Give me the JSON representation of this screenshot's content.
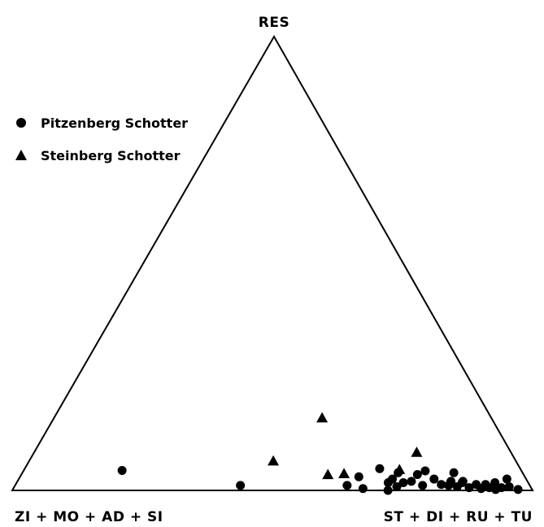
{
  "chart_data": {
    "type": "scatter",
    "subtype": "ternary",
    "apex_labels": {
      "top": "RES",
      "left": "ZI + MO + AD + SI",
      "right": "ST + DI + RU + TU"
    },
    "legend": {
      "placement": "top-left",
      "entries": [
        {
          "name": "Pitzenberg Schotter",
          "marker": "circle"
        },
        {
          "name": "Steinberg Schotter",
          "marker": "triangle"
        }
      ]
    },
    "units": "percent",
    "series": [
      {
        "name": "Pitzenberg Schotter",
        "marker": "circle",
        "points": [
          {
            "res": 4.4,
            "zmas": 76.7,
            "stdirutu": 18.9
          },
          {
            "res": 1.1,
            "zmas": 55.6,
            "stdirutu": 43.3
          },
          {
            "res": 1.1,
            "zmas": 35.1,
            "stdirutu": 63.8
          },
          {
            "res": 3.0,
            "zmas": 31.9,
            "stdirutu": 65.1
          },
          {
            "res": 4.8,
            "zmas": 27.0,
            "stdirutu": 68.2
          },
          {
            "res": 2.5,
            "zmas": 25.7,
            "stdirutu": 71.8
          },
          {
            "res": 0.4,
            "zmas": 32.4,
            "stdirutu": 67.2
          },
          {
            "res": 0.0,
            "zmas": 27.8,
            "stdirutu": 72.2
          },
          {
            "res": 1.7,
            "zmas": 26.9,
            "stdirutu": 71.4
          },
          {
            "res": 0.8,
            "zmas": 25.7,
            "stdirutu": 73.5
          },
          {
            "res": 1.7,
            "zmas": 24.0,
            "stdirutu": 74.3
          },
          {
            "res": 3.9,
            "zmas": 23.9,
            "stdirutu": 72.2
          },
          {
            "res": 2.0,
            "zmas": 22.3,
            "stdirutu": 75.7
          },
          {
            "res": 3.5,
            "zmas": 20.4,
            "stdirutu": 76.1
          },
          {
            "res": 1.1,
            "zmas": 20.6,
            "stdirutu": 78.3
          },
          {
            "res": 4.3,
            "zmas": 18.5,
            "stdirutu": 77.2
          },
          {
            "res": 2.5,
            "zmas": 17.7,
            "stdirutu": 79.8
          },
          {
            "res": 1.3,
            "zmas": 16.9,
            "stdirutu": 81.8
          },
          {
            "res": 2.0,
            "zmas": 14.7,
            "stdirutu": 83.3
          },
          {
            "res": 1.1,
            "zmas": 15.6,
            "stdirutu": 83.3
          },
          {
            "res": 0.8,
            "zmas": 14.1,
            "stdirutu": 85.1
          },
          {
            "res": 3.9,
            "zmas": 13.2,
            "stdirutu": 82.9
          },
          {
            "res": 1.7,
            "zmas": 12.7,
            "stdirutu": 85.6
          },
          {
            "res": 0.6,
            "zmas": 11.9,
            "stdirutu": 87.5
          },
          {
            "res": 1.3,
            "zmas": 10.2,
            "stdirutu": 88.5
          },
          {
            "res": 2.0,
            "zmas": 12.4,
            "stdirutu": 85.6
          },
          {
            "res": 0.4,
            "zmas": 9.7,
            "stdirutu": 89.9
          },
          {
            "res": 0.6,
            "zmas": 8.0,
            "stdirutu": 91.4
          },
          {
            "res": 1.3,
            "zmas": 8.4,
            "stdirutu": 90.3
          },
          {
            "res": 0.2,
            "zmas": 7.0,
            "stdirutu": 92.8
          },
          {
            "res": 1.7,
            "zmas": 6.4,
            "stdirutu": 91.9
          },
          {
            "res": 0.8,
            "zmas": 4.1,
            "stdirutu": 95.1
          },
          {
            "res": 0.2,
            "zmas": 2.7,
            "stdirutu": 97.1
          },
          {
            "res": 2.5,
            "zmas": 3.7,
            "stdirutu": 93.8
          },
          {
            "res": 0.6,
            "zmas": 5.7,
            "stdirutu": 93.7
          }
        ]
      },
      {
        "name": "Steinberg Schotter",
        "marker": "triangle",
        "points": [
          {
            "res": 6.5,
            "zmas": 46.6,
            "stdirutu": 46.9
          },
          {
            "res": 3.5,
            "zmas": 37.6,
            "stdirutu": 58.9
          },
          {
            "res": 3.7,
            "zmas": 34.4,
            "stdirutu": 61.9
          },
          {
            "res": 16.0,
            "zmas": 32.5,
            "stdirutu": 51.5
          },
          {
            "res": 8.4,
            "zmas": 18.1,
            "stdirutu": 73.5
          },
          {
            "res": 4.6,
            "zmas": 23.3,
            "stdirutu": 72.1
          }
        ]
      }
    ]
  }
}
